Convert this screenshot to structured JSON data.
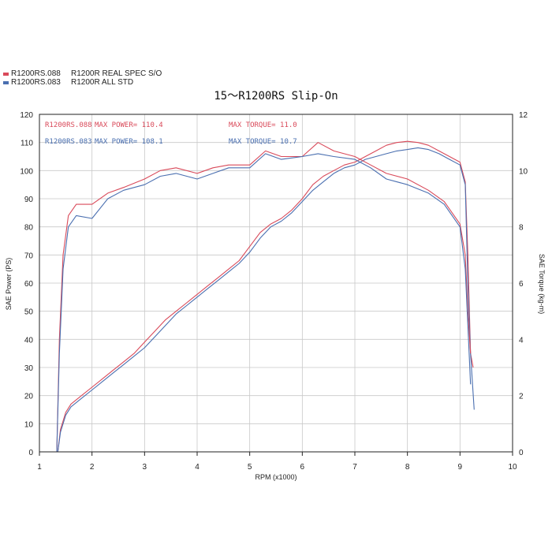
{
  "legend": [
    {
      "code": "R1200RS.088",
      "desc": "R1200R REAL SPEC S/O",
      "color": "#d94a5a"
    },
    {
      "code": "R1200RS.083",
      "desc": "R1200R ALL STD",
      "color": "#4a6fb0"
    }
  ],
  "chart_data": {
    "type": "line",
    "title": "15～R1200RS  Slip-On",
    "xlabel": "RPM (x1000)",
    "ylabel": "SAE Power (PS)",
    "y2label": "SAE Torque (kg-m)",
    "xlim": [
      1,
      10
    ],
    "ylim": [
      0,
      120
    ],
    "y2lim": [
      0,
      12
    ],
    "x_ticks": [
      1,
      2,
      3,
      4,
      5,
      6,
      7,
      8,
      9,
      10
    ],
    "y_ticks": [
      0,
      10,
      20,
      30,
      40,
      50,
      60,
      70,
      80,
      90,
      100,
      110,
      120
    ],
    "y2_ticks": [
      0,
      2,
      4,
      6,
      8,
      10,
      12
    ],
    "grid": true,
    "annotations": [
      {
        "label": "R1200RS.088",
        "power": "MAX POWER= 110.4",
        "torque": "MAX TORQUE= 11.0",
        "color": "#d94a5a"
      },
      {
        "label": "R1200RS.083",
        "power": "MAX POWER= 108.1",
        "torque": "MAX TORQUE= 10.7",
        "color": "#4a6fb0"
      }
    ],
    "series": [
      {
        "name": "R1200RS.088 Power",
        "axis": "left",
        "color": "#d94a5a",
        "points": [
          [
            1.35,
            0
          ],
          [
            1.4,
            8
          ],
          [
            1.5,
            14
          ],
          [
            1.6,
            17
          ],
          [
            1.8,
            20
          ],
          [
            2,
            23
          ],
          [
            2.2,
            26
          ],
          [
            2.4,
            29
          ],
          [
            2.6,
            32
          ],
          [
            2.8,
            35
          ],
          [
            3,
            39
          ],
          [
            3.2,
            43
          ],
          [
            3.4,
            47
          ],
          [
            3.6,
            50
          ],
          [
            3.8,
            53
          ],
          [
            4,
            56
          ],
          [
            4.2,
            59
          ],
          [
            4.4,
            62
          ],
          [
            4.6,
            65
          ],
          [
            4.8,
            68
          ],
          [
            5,
            73
          ],
          [
            5.2,
            78
          ],
          [
            5.4,
            81
          ],
          [
            5.6,
            83
          ],
          [
            5.8,
            86
          ],
          [
            6,
            90
          ],
          [
            6.2,
            95
          ],
          [
            6.4,
            98
          ],
          [
            6.6,
            100
          ],
          [
            6.8,
            102
          ],
          [
            7,
            103
          ],
          [
            7.2,
            105
          ],
          [
            7.4,
            107
          ],
          [
            7.6,
            109
          ],
          [
            7.8,
            110
          ],
          [
            8,
            110.4
          ],
          [
            8.2,
            110
          ],
          [
            8.4,
            109
          ],
          [
            8.6,
            107
          ],
          [
            8.8,
            105
          ],
          [
            9,
            103
          ],
          [
            9.1,
            96
          ],
          [
            9.15,
            70
          ],
          [
            9.2,
            35
          ],
          [
            9.25,
            30
          ]
        ]
      },
      {
        "name": "R1200RS.083 Power",
        "axis": "left",
        "color": "#4a6fb0",
        "points": [
          [
            1.35,
            0
          ],
          [
            1.4,
            7
          ],
          [
            1.5,
            13
          ],
          [
            1.6,
            16
          ],
          [
            1.8,
            19
          ],
          [
            2,
            22
          ],
          [
            2.2,
            25
          ],
          [
            2.4,
            28
          ],
          [
            2.6,
            31
          ],
          [
            2.8,
            34
          ],
          [
            3,
            37
          ],
          [
            3.2,
            41
          ],
          [
            3.4,
            45
          ],
          [
            3.6,
            49
          ],
          [
            3.8,
            52
          ],
          [
            4,
            55
          ],
          [
            4.2,
            58
          ],
          [
            4.4,
            61
          ],
          [
            4.6,
            64
          ],
          [
            4.8,
            67
          ],
          [
            5,
            71
          ],
          [
            5.2,
            76
          ],
          [
            5.4,
            80
          ],
          [
            5.6,
            82
          ],
          [
            5.8,
            85
          ],
          [
            6,
            89
          ],
          [
            6.2,
            93
          ],
          [
            6.4,
            96
          ],
          [
            6.6,
            99
          ],
          [
            6.8,
            101
          ],
          [
            7,
            102
          ],
          [
            7.2,
            104
          ],
          [
            7.4,
            105
          ],
          [
            7.6,
            106
          ],
          [
            7.8,
            107
          ],
          [
            8,
            107.5
          ],
          [
            8.2,
            108.1
          ],
          [
            8.4,
            107.5
          ],
          [
            8.6,
            106
          ],
          [
            8.8,
            104
          ],
          [
            9,
            102
          ],
          [
            9.1,
            95
          ],
          [
            9.15,
            60
          ],
          [
            9.2,
            35
          ],
          [
            9.27,
            15
          ]
        ]
      },
      {
        "name": "R1200RS.088 Torque",
        "axis": "right",
        "color": "#d94a5a",
        "points": [
          [
            1.33,
            0
          ],
          [
            1.38,
            4
          ],
          [
            1.45,
            7
          ],
          [
            1.55,
            8.4
          ],
          [
            1.7,
            8.8
          ],
          [
            2,
            8.8
          ],
          [
            2.3,
            9.2
          ],
          [
            2.6,
            9.4
          ],
          [
            3,
            9.7
          ],
          [
            3.3,
            10
          ],
          [
            3.6,
            10.1
          ],
          [
            4,
            9.9
          ],
          [
            4.3,
            10.1
          ],
          [
            4.6,
            10.2
          ],
          [
            5,
            10.2
          ],
          [
            5.3,
            10.7
          ],
          [
            5.6,
            10.5
          ],
          [
            6,
            10.5
          ],
          [
            6.3,
            11
          ],
          [
            6.6,
            10.7
          ],
          [
            7,
            10.5
          ],
          [
            7.3,
            10.2
          ],
          [
            7.6,
            9.9
          ],
          [
            8,
            9.7
          ],
          [
            8.4,
            9.3
          ],
          [
            8.7,
            8.9
          ],
          [
            9,
            8.1
          ],
          [
            9.1,
            7
          ],
          [
            9.15,
            5
          ],
          [
            9.2,
            3.5
          ]
        ]
      },
      {
        "name": "R1200RS.083 Torque",
        "axis": "right",
        "color": "#4a6fb0",
        "points": [
          [
            1.33,
            0
          ],
          [
            1.38,
            3.5
          ],
          [
            1.45,
            6.5
          ],
          [
            1.55,
            8
          ],
          [
            1.7,
            8.4
          ],
          [
            2,
            8.3
          ],
          [
            2.3,
            9
          ],
          [
            2.6,
            9.3
          ],
          [
            3,
            9.5
          ],
          [
            3.3,
            9.8
          ],
          [
            3.6,
            9.9
          ],
          [
            4,
            9.7
          ],
          [
            4.3,
            9.9
          ],
          [
            4.6,
            10.1
          ],
          [
            5,
            10.1
          ],
          [
            5.3,
            10.6
          ],
          [
            5.6,
            10.4
          ],
          [
            6,
            10.5
          ],
          [
            6.3,
            10.6
          ],
          [
            6.6,
            10.5
          ],
          [
            7,
            10.4
          ],
          [
            7.3,
            10.1
          ],
          [
            7.6,
            9.7
          ],
          [
            8,
            9.5
          ],
          [
            8.4,
            9.2
          ],
          [
            8.7,
            8.8
          ],
          [
            9,
            8
          ],
          [
            9.1,
            6.5
          ],
          [
            9.15,
            4.5
          ],
          [
            9.2,
            2.4
          ]
        ]
      }
    ]
  }
}
